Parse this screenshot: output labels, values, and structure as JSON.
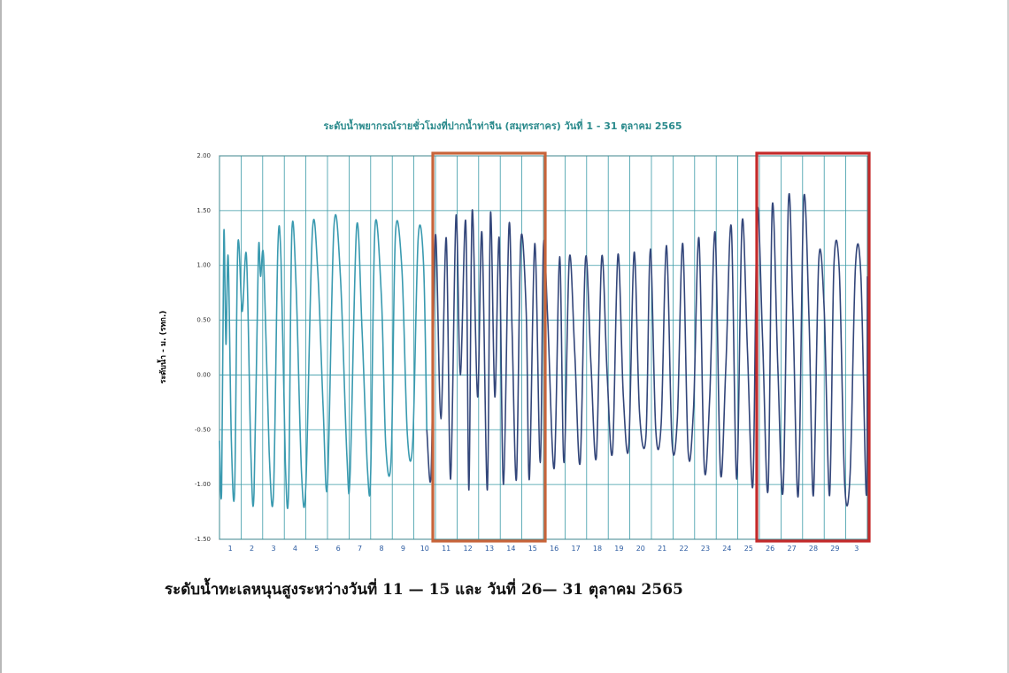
{
  "caption": "ระดับน้ำทะเลหนุนสูงระหว่างวันที่ 11 — 15 และ วันที่ 26— 31 ตุลาคม 2565",
  "colors": {
    "grid": "#3a9aa6",
    "series_early": "#3a9ab0",
    "series_late": "#33467a",
    "highlight_orange": "#c8643a",
    "highlight_red": "#c42a2a",
    "title": "#2a8a8c"
  },
  "chart_data": {
    "type": "line",
    "title": "ระดับน้ำพยากรณ์รายชั่วโมงที่ปากน้ำท่าจีน (สมุทรสาคร) วันที่ 1 - 31 ตุลาคม 2565",
    "ylabel": "ระดับน้ำ - ม. (รทก.)",
    "xlabel": "",
    "ylim": [
      -1.5,
      2.0
    ],
    "xlim": [
      1,
      31
    ],
    "ytick_labels": [
      "2.00",
      "1.50",
      "1.00",
      "0.50",
      "0.00",
      "-0.50",
      "-1.00",
      "-1.50"
    ],
    "ytick_values": [
      2.0,
      1.5,
      1.0,
      0.5,
      0.0,
      -0.5,
      -1.0,
      -1.5
    ],
    "xtick_labels": [
      "1",
      "2",
      "3",
      "4",
      "5",
      "6",
      "7",
      "8",
      "9",
      "10",
      "11",
      "12",
      "13",
      "14",
      "15",
      "16",
      "17",
      "18",
      "19",
      "20",
      "21",
      "22",
      "23",
      "24",
      "25",
      "26",
      "27",
      "28",
      "29",
      "3"
    ],
    "grid": true,
    "legend": "none",
    "highlights": [
      {
        "x_start": 11,
        "x_end": 16,
        "color": "orange-red"
      },
      {
        "x_start": 26,
        "x_end": 31,
        "color": "red"
      }
    ],
    "series": [
      {
        "x": [
          1.0,
          1.1,
          1.2,
          1.3,
          1.4,
          1.55,
          1.7,
          1.85,
          2.05,
          2.25,
          2.45,
          2.6,
          2.8,
          2.9,
          3.05,
          3.3,
          3.5,
          3.7,
          3.85,
          4.05,
          4.2,
          4.35,
          4.55,
          4.8,
          5.0,
          5.3,
          5.55,
          5.8,
          6.0,
          6.3,
          6.6,
          6.9,
          7.05,
          7.35,
          7.6,
          7.85,
          8.0,
          8.2,
          8.5,
          8.7,
          8.95,
          9.15,
          9.45,
          9.7,
          9.95,
          10.2,
          10.45,
          10.6
        ],
        "y": [
          -0.6,
          -1.05,
          1.3,
          0.28,
          1.08,
          -0.6,
          -1.05,
          1.18,
          0.58,
          1.08,
          -0.7,
          -1.08,
          1.1,
          0.9,
          1.05,
          -0.7,
          -1.08,
          1.15,
          1.05,
          -0.8,
          -1.05,
          1.3,
          0.8,
          -0.9,
          -1.0,
          1.3,
          0.95,
          -0.3,
          -1.0,
          1.35,
          0.9,
          -0.75,
          -0.9,
          1.35,
          0.42,
          -0.85,
          -0.9,
          1.35,
          0.7,
          -0.65,
          -0.75,
          1.3,
          0.95,
          -0.55,
          -0.6,
          1.25,
          1.0,
          -0.5
        ]
      },
      {
        "x": [
          10.6,
          10.8,
          11.0,
          11.25,
          11.5,
          11.7,
          11.95,
          12.15,
          12.4,
          12.55,
          12.7,
          12.95,
          13.15,
          13.4,
          13.55,
          13.75,
          13.95,
          14.15,
          14.4,
          14.55,
          14.75,
          14.95,
          15.2,
          15.35,
          15.6,
          15.85,
          16.0,
          16.2,
          16.5,
          16.75,
          16.95,
          17.2,
          17.45,
          17.7,
          17.95,
          18.2,
          18.45,
          18.7,
          18.95,
          19.2,
          19.45,
          19.7,
          19.95,
          20.2,
          20.45,
          20.75,
          20.95,
          21.2,
          21.45,
          21.7,
          21.95,
          22.2,
          22.45,
          22.7,
          22.95,
          23.2,
          23.45,
          23.7,
          23.95,
          24.2,
          24.45,
          24.7,
          24.95,
          25.2,
          25.45,
          25.7,
          25.9,
          26.15,
          26.4,
          26.6,
          26.85,
          27.1,
          27.35,
          27.55,
          27.8,
          28.05,
          28.3,
          28.5,
          28.75,
          29.0,
          29.25,
          29.45,
          29.7,
          29.95,
          30.2,
          30.45,
          30.7,
          30.95,
          31.0
        ],
        "y": [
          -0.5,
          -0.9,
          1.28,
          -0.4,
          1.25,
          -0.95,
          1.45,
          0.0,
          1.4,
          -1.05,
          1.5,
          -0.2,
          1.3,
          -1.05,
          1.48,
          -0.2,
          1.25,
          -1.0,
          1.35,
          0.4,
          -0.95,
          1.22,
          0.58,
          -0.95,
          1.2,
          -0.8,
          1.18,
          0.5,
          -0.85,
          1.08,
          -0.8,
          1.07,
          0.2,
          -0.8,
          1.07,
          0.1,
          -0.75,
          1.08,
          0.0,
          -0.7,
          1.1,
          -0.2,
          -0.65,
          1.12,
          -0.35,
          -0.55,
          1.15,
          -0.5,
          -0.45,
          1.18,
          -0.6,
          -0.4,
          1.2,
          -0.7,
          -0.3,
          1.25,
          -0.85,
          -0.2,
          1.3,
          -0.9,
          0.1,
          1.35,
          -0.95,
          1.4,
          0.2,
          -1.0,
          1.5,
          0.3,
          -1.05,
          1.55,
          0.1,
          -1.05,
          1.6,
          0.6,
          -1.1,
          1.6,
          0.5,
          -1.1,
          1.05,
          0.6,
          -1.1,
          1.0,
          0.95,
          -1.0,
          -0.9,
          1.0,
          0.9,
          -1.1,
          0.9
        ]
      }
    ]
  }
}
